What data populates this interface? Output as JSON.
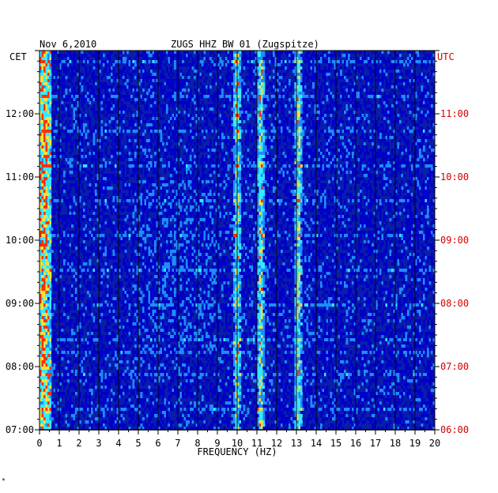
{
  "header": {
    "date": "Nov 6,2010",
    "station": "ZUGS HHZ BW 01 (Zugspitze)"
  },
  "footnote": "*",
  "chart_data": {
    "type": "heatmap",
    "title": "ZUGS HHZ BW 01 (Zugspitze)",
    "subtitle": "Nov 6,2010",
    "xlabel": "FREQUENCY (HZ)",
    "xlim": [
      0,
      20
    ],
    "x_ticks": [
      "0",
      "1",
      "2",
      "3",
      "4",
      "5",
      "6",
      "7",
      "8",
      "9",
      "10",
      "11",
      "12",
      "13",
      "14",
      "15",
      "16",
      "17",
      "18",
      "19",
      "20"
    ],
    "y_left_label": "CET",
    "y_right_label": "UTC",
    "y_left_ticks": [
      "12:00",
      "11:00",
      "10:00",
      "09:00",
      "08:00",
      "07:00"
    ],
    "y_right_ticks": [
      "11:00",
      "10:00",
      "09:00",
      "08:00",
      "07:00",
      "06:00"
    ],
    "time_range_cet": [
      "07:00",
      "13:00"
    ],
    "grid": true,
    "colors": {
      "background": "#0a1ea8",
      "low": "#0000c8",
      "mid": "#1e8cff",
      "high": "#38e8ff",
      "peak": "#f0e040",
      "hot": "#ff3000",
      "utc_text": "#d40000"
    },
    "persistent_peaks_hz": [
      0.2,
      10.0,
      11.2,
      13.1
    ],
    "broadband_event_cet": "07:38"
  }
}
